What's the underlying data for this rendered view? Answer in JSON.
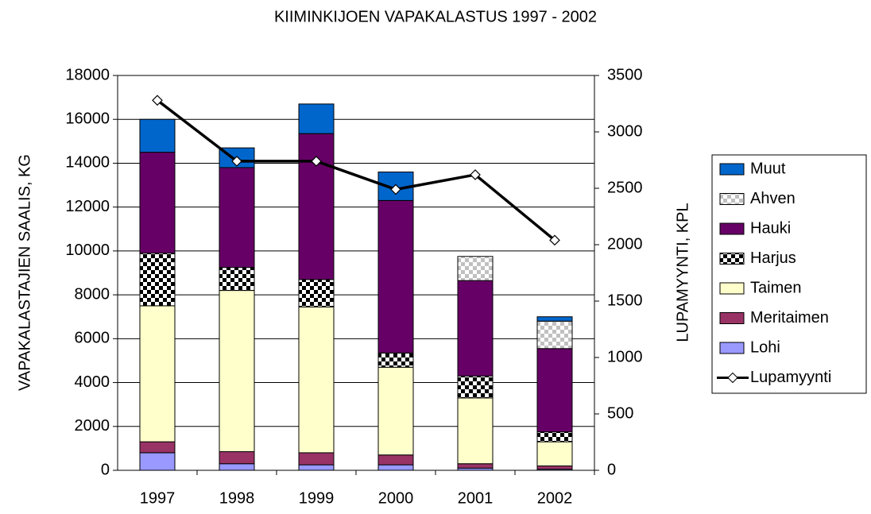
{
  "chart_data": {
    "type": "bar",
    "stacked": true,
    "title": "KIIMINKIJOEN VAPAKALASTUS 1997 - 2002",
    "ylabel": "VAPAKALASTAJIEN SAALIS, KG",
    "y2label": "LUPAMYYNTI, KPL",
    "categories": [
      "1997",
      "1998",
      "1999",
      "2000",
      "2001",
      "2002"
    ],
    "series": [
      {
        "name": "Lohi",
        "color": "#9999ff",
        "values": [
          800,
          300,
          250,
          250,
          100,
          50
        ]
      },
      {
        "name": "Meritaimen",
        "color": "#993366",
        "values": [
          500,
          550,
          550,
          450,
          200,
          150
        ]
      },
      {
        "name": "Taimen",
        "color": "#ffffcc",
        "values": [
          6200,
          7350,
          6650,
          4000,
          3000,
          1100
        ]
      },
      {
        "name": "Harjus",
        "color": "#000000",
        "pattern": "checker",
        "values": [
          2400,
          1050,
          1250,
          650,
          1000,
          450
        ]
      },
      {
        "name": "Hauki",
        "color": "#660066",
        "values": [
          4600,
          4550,
          6650,
          6950,
          4350,
          3800
        ]
      },
      {
        "name": "Ahven",
        "color": "#c0c0c0",
        "pattern": "checker",
        "values": [
          0,
          0,
          0,
          0,
          1100,
          1250
        ]
      },
      {
        "name": "Muut",
        "color": "#0066cc",
        "values": [
          1500,
          900,
          1350,
          1300,
          0,
          200
        ]
      },
      {
        "name": "Lupamyynti",
        "type": "line",
        "axis": "y2",
        "color": "#000000",
        "values": [
          3280,
          2740,
          2740,
          2490,
          2620,
          2040
        ]
      }
    ],
    "ylim": [
      0,
      18000
    ],
    "yticks": [
      0,
      2000,
      4000,
      6000,
      8000,
      10000,
      12000,
      14000,
      16000,
      18000
    ],
    "y2lim": [
      0,
      3500
    ],
    "y2ticks": [
      0,
      500,
      1000,
      1500,
      2000,
      2500,
      3000,
      3500
    ],
    "grid": true,
    "legend": "right"
  }
}
